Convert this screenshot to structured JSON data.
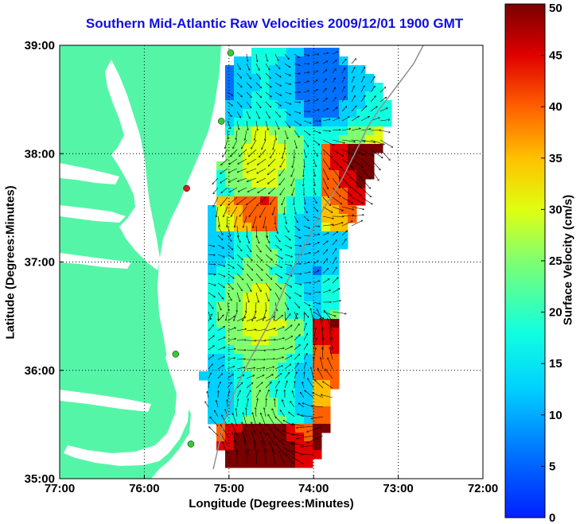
{
  "title": "Southern Mid-Atlantic Raw Velocities 2009/12/01 1900 GMT",
  "colors": {
    "title": "#1010e0",
    "land": "#55f5a8",
    "frame": "#000000"
  },
  "icons": [
    "station-marker-icon",
    "current-vector-arrow-icon"
  ],
  "chart_data": {
    "type": "heatmap",
    "xlabel": "Longitude (Degrees:Minutes)",
    "ylabel": "Latitude (Degrees:Minutes)",
    "colorbar_label": "Surface Velocity (cm/s)",
    "xlim": [
      -77,
      -72
    ],
    "ylim": [
      35,
      39
    ],
    "grid": true,
    "x_ticks": [
      {
        "value": -77,
        "label": "77:00"
      },
      {
        "value": -76,
        "label": "76:00"
      },
      {
        "value": -75,
        "label": "75:00"
      },
      {
        "value": -74,
        "label": "74:00"
      },
      {
        "value": -73,
        "label": "73:00"
      },
      {
        "value": -72,
        "label": "72:00"
      }
    ],
    "y_ticks": [
      {
        "value": 35,
        "label": "35:00"
      },
      {
        "value": 36,
        "label": "36:00"
      },
      {
        "value": 37,
        "label": "37:00"
      },
      {
        "value": 38,
        "label": "38:00"
      },
      {
        "value": 39,
        "label": "39:00"
      }
    ],
    "colorbar": {
      "min": 0,
      "max": 50,
      "ticks": [
        "0",
        "5",
        "10",
        "15",
        "20",
        "25",
        "30",
        "35",
        "40",
        "45",
        "50"
      ]
    },
    "stations": [
      {
        "lon": -74.98,
        "lat": 38.93,
        "color": "#33cc33"
      },
      {
        "lon": -75.09,
        "lat": 38.3,
        "color": "#33cc33"
      },
      {
        "lon": -75.5,
        "lat": 37.68,
        "color": "#cc2222"
      },
      {
        "lon": -75.63,
        "lat": 36.15,
        "color": "#33cc33"
      },
      {
        "lon": -75.45,
        "lat": 35.32,
        "color": "#33cc33"
      }
    ]
  }
}
